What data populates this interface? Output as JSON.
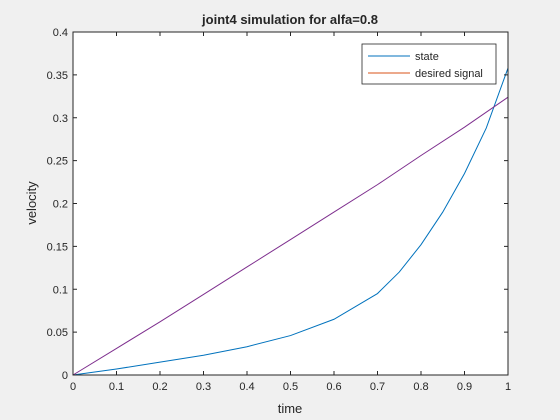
{
  "chart_data": {
    "type": "line",
    "title": "joint4 simulation for alfa=0.8",
    "xlabel": "time",
    "ylabel": "velocity",
    "xlim": [
      0,
      1
    ],
    "ylim": [
      0,
      0.4
    ],
    "xticks": [
      0,
      0.1,
      0.2,
      0.3,
      0.4,
      0.5,
      0.6,
      0.7,
      0.8,
      0.9,
      1
    ],
    "yticks": [
      0,
      0.05,
      0.1,
      0.15,
      0.2,
      0.25,
      0.3,
      0.35,
      0.4
    ],
    "xtick_labels": [
      "0",
      "0.1",
      "0.2",
      "0.3",
      "0.4",
      "0.5",
      "0.6",
      "0.7",
      "0.8",
      "0.9",
      "1"
    ],
    "ytick_labels": [
      "0",
      "0.05",
      "0.1",
      "0.15",
      "0.2",
      "0.25",
      "0.3",
      "0.35",
      "0.4"
    ],
    "grid": false,
    "legend_position": "top-right",
    "legend": [
      {
        "label": "state",
        "color": "#0072BD"
      },
      {
        "label": "desired signal",
        "color": "#D95319"
      }
    ],
    "series": [
      {
        "name": "state",
        "color": "#0072BD",
        "x": [
          0,
          0.1,
          0.2,
          0.3,
          0.4,
          0.5,
          0.6,
          0.7,
          0.75,
          0.8,
          0.85,
          0.9,
          0.95,
          1.0
        ],
        "y": [
          0,
          0.007,
          0.015,
          0.023,
          0.033,
          0.046,
          0.065,
          0.095,
          0.12,
          0.152,
          0.19,
          0.235,
          0.288,
          0.358
        ]
      },
      {
        "name": "desired signal",
        "color": "#D95319",
        "x": [
          0,
          1
        ],
        "y": [
          0,
          0
        ]
      },
      {
        "color": "#7E2F8E",
        "x": [
          0,
          0.1,
          0.2,
          0.3,
          0.4,
          0.5,
          0.6,
          0.7,
          0.8,
          0.9,
          1.0
        ],
        "y": [
          0,
          0.031,
          0.062,
          0.094,
          0.126,
          0.158,
          0.19,
          0.222,
          0.256,
          0.289,
          0.324
        ]
      }
    ]
  }
}
